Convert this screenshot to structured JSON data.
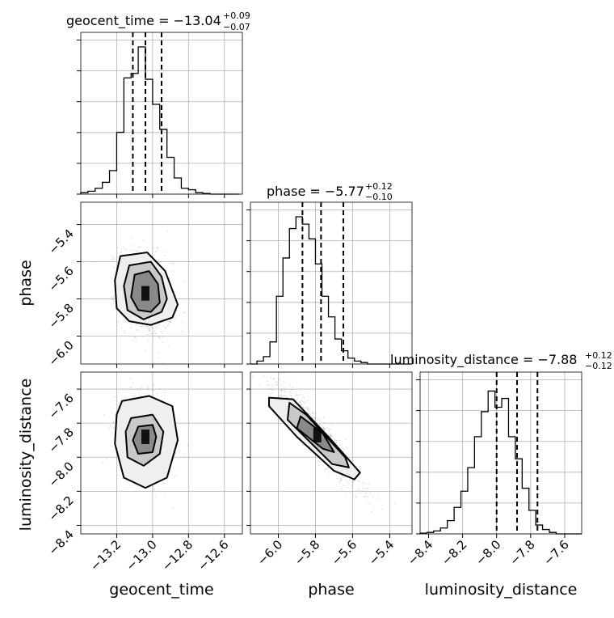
{
  "chart_data": {
    "type": "corner",
    "grid": true,
    "parameters": [
      {
        "name": "geocent_time",
        "range": [
          -13.4,
          -12.5
        ],
        "ticks": [
          -13.2,
          -13.0,
          -12.8,
          -12.6
        ],
        "tick_labels": [
          "−13.2",
          "−13.0",
          "−12.8",
          "−12.6"
        ]
      },
      {
        "name": "phase",
        "range": [
          -6.15,
          -5.28
        ],
        "ticks": [
          -6.0,
          -5.8,
          -5.6,
          -5.4
        ],
        "tick_labels": [
          "−6.0",
          "−5.8",
          "−5.6",
          "−5.4"
        ]
      },
      {
        "name": "luminosity_distance",
        "range": [
          -8.45,
          -7.5
        ],
        "ticks": [
          -8.4,
          -8.2,
          -8.0,
          -7.8,
          -7.6
        ],
        "tick_labels": [
          "−8.4",
          "−8.2",
          "−8.0",
          "−7.8",
          "−7.6"
        ]
      }
    ],
    "titles": [
      {
        "main": "geocent_time = −13.04",
        "plus": "+0.09",
        "minus": "−0.07"
      },
      {
        "main": "phase = −5.77",
        "plus": "+0.12",
        "minus": "−0.10"
      },
      {
        "main": "luminosity_distance = −7.88",
        "plus": "+0.12",
        "minus": "−0.12"
      }
    ],
    "quantiles": [
      [
        -13.11,
        -13.04,
        -12.95
      ],
      [
        -5.87,
        -5.77,
        -5.65
      ],
      [
        -8.0,
        -7.88,
        -7.76
      ]
    ],
    "histograms": [
      {
        "edges_start": -13.4,
        "bin_width": 0.04,
        "counts": [
          0.01,
          0.02,
          0.04,
          0.08,
          0.16,
          0.42,
          0.79,
          0.82,
          1.0,
          0.78,
          0.61,
          0.44,
          0.25,
          0.11,
          0.04,
          0.03,
          0.01,
          0.005,
          0,
          0,
          0,
          0
        ]
      },
      {
        "edges_start": -6.15,
        "bin_width": 0.035,
        "counts": [
          0,
          0.02,
          0.05,
          0.15,
          0.46,
          0.72,
          0.92,
          1.0,
          0.95,
          0.85,
          0.68,
          0.46,
          0.32,
          0.17,
          0.09,
          0.04,
          0.02,
          0.01,
          0,
          0,
          0,
          0,
          0,
          0,
          0
        ]
      },
      {
        "edges_start": -8.45,
        "bin_width": 0.04,
        "counts": [
          0.005,
          0.01,
          0.02,
          0.04,
          0.09,
          0.18,
          0.29,
          0.45,
          0.66,
          0.83,
          0.97,
          0.86,
          0.92,
          0.66,
          0.51,
          0.31,
          0.16,
          0.06,
          0.03,
          0.01,
          0,
          0,
          0,
          0
        ]
      }
    ],
    "pairs": [
      {
        "x": 0,
        "y": 1,
        "center": [
          -13.04,
          -5.77
        ],
        "contours": [
          [
            [
              -13.1,
              -5.67
            ],
            [
              -13.02,
              -5.65
            ],
            [
              -12.97,
              -5.72
            ],
            [
              -12.96,
              -5.82
            ],
            [
              -13.01,
              -5.87
            ],
            [
              -13.08,
              -5.86
            ],
            [
              -13.12,
              -5.79
            ]
          ],
          [
            [
              -13.13,
              -5.62
            ],
            [
              -13.01,
              -5.6
            ],
            [
              -12.95,
              -5.68
            ],
            [
              -12.92,
              -5.8
            ],
            [
              -12.95,
              -5.87
            ],
            [
              -13.05,
              -5.91
            ],
            [
              -13.14,
              -5.86
            ],
            [
              -13.16,
              -5.73
            ]
          ],
          [
            [
              -13.18,
              -5.57
            ],
            [
              -13.03,
              -5.55
            ],
            [
              -12.93,
              -5.65
            ],
            [
              -12.86,
              -5.83
            ],
            [
              -12.89,
              -5.9
            ],
            [
              -13.01,
              -5.94
            ],
            [
              -13.13,
              -5.92
            ],
            [
              -13.2,
              -5.85
            ],
            [
              -13.21,
              -5.7
            ]
          ]
        ]
      },
      {
        "x": 0,
        "y": 2,
        "center": [
          -13.04,
          -7.88
        ],
        "contours": [
          [
            [
              -13.08,
              -7.82
            ],
            [
              -13.0,
              -7.81
            ],
            [
              -12.98,
              -7.88
            ],
            [
              -13.0,
              -7.97
            ],
            [
              -13.08,
              -7.98
            ],
            [
              -13.11,
              -7.9
            ]
          ],
          [
            [
              -13.12,
              -7.77
            ],
            [
              -13.0,
              -7.75
            ],
            [
              -12.94,
              -7.85
            ],
            [
              -12.96,
              -7.98
            ],
            [
              -13.05,
              -8.05
            ],
            [
              -13.14,
              -8.0
            ],
            [
              -13.15,
              -7.85
            ]
          ],
          [
            [
              -13.17,
              -7.67
            ],
            [
              -13.02,
              -7.64
            ],
            [
              -12.89,
              -7.7
            ],
            [
              -12.86,
              -7.9
            ],
            [
              -12.92,
              -8.12
            ],
            [
              -13.04,
              -8.18
            ],
            [
              -13.16,
              -8.12
            ],
            [
              -13.21,
              -7.92
            ],
            [
              -13.2,
              -7.75
            ]
          ]
        ]
      },
      {
        "x": 1,
        "y": 2,
        "center": [
          -5.79,
          -7.87
        ],
        "contours": [
          [
            [
              -5.88,
              -7.76
            ],
            [
              -5.76,
              -7.86
            ],
            [
              -5.7,
              -7.97
            ],
            [
              -5.76,
              -7.95
            ],
            [
              -5.9,
              -7.83
            ]
          ],
          [
            [
              -5.94,
              -7.68
            ],
            [
              -5.85,
              -7.75
            ],
            [
              -5.64,
              -8.0
            ],
            [
              -5.62,
              -8.06
            ],
            [
              -5.71,
              -8.04
            ],
            [
              -5.95,
              -7.78
            ]
          ],
          [
            [
              -6.05,
              -7.65
            ],
            [
              -5.92,
              -7.66
            ],
            [
              -5.73,
              -7.88
            ],
            [
              -5.56,
              -8.09
            ],
            [
              -5.59,
              -8.13
            ],
            [
              -5.7,
              -8.08
            ],
            [
              -5.9,
              -7.88
            ],
            [
              -6.05,
              -7.7
            ]
          ]
        ]
      }
    ]
  }
}
